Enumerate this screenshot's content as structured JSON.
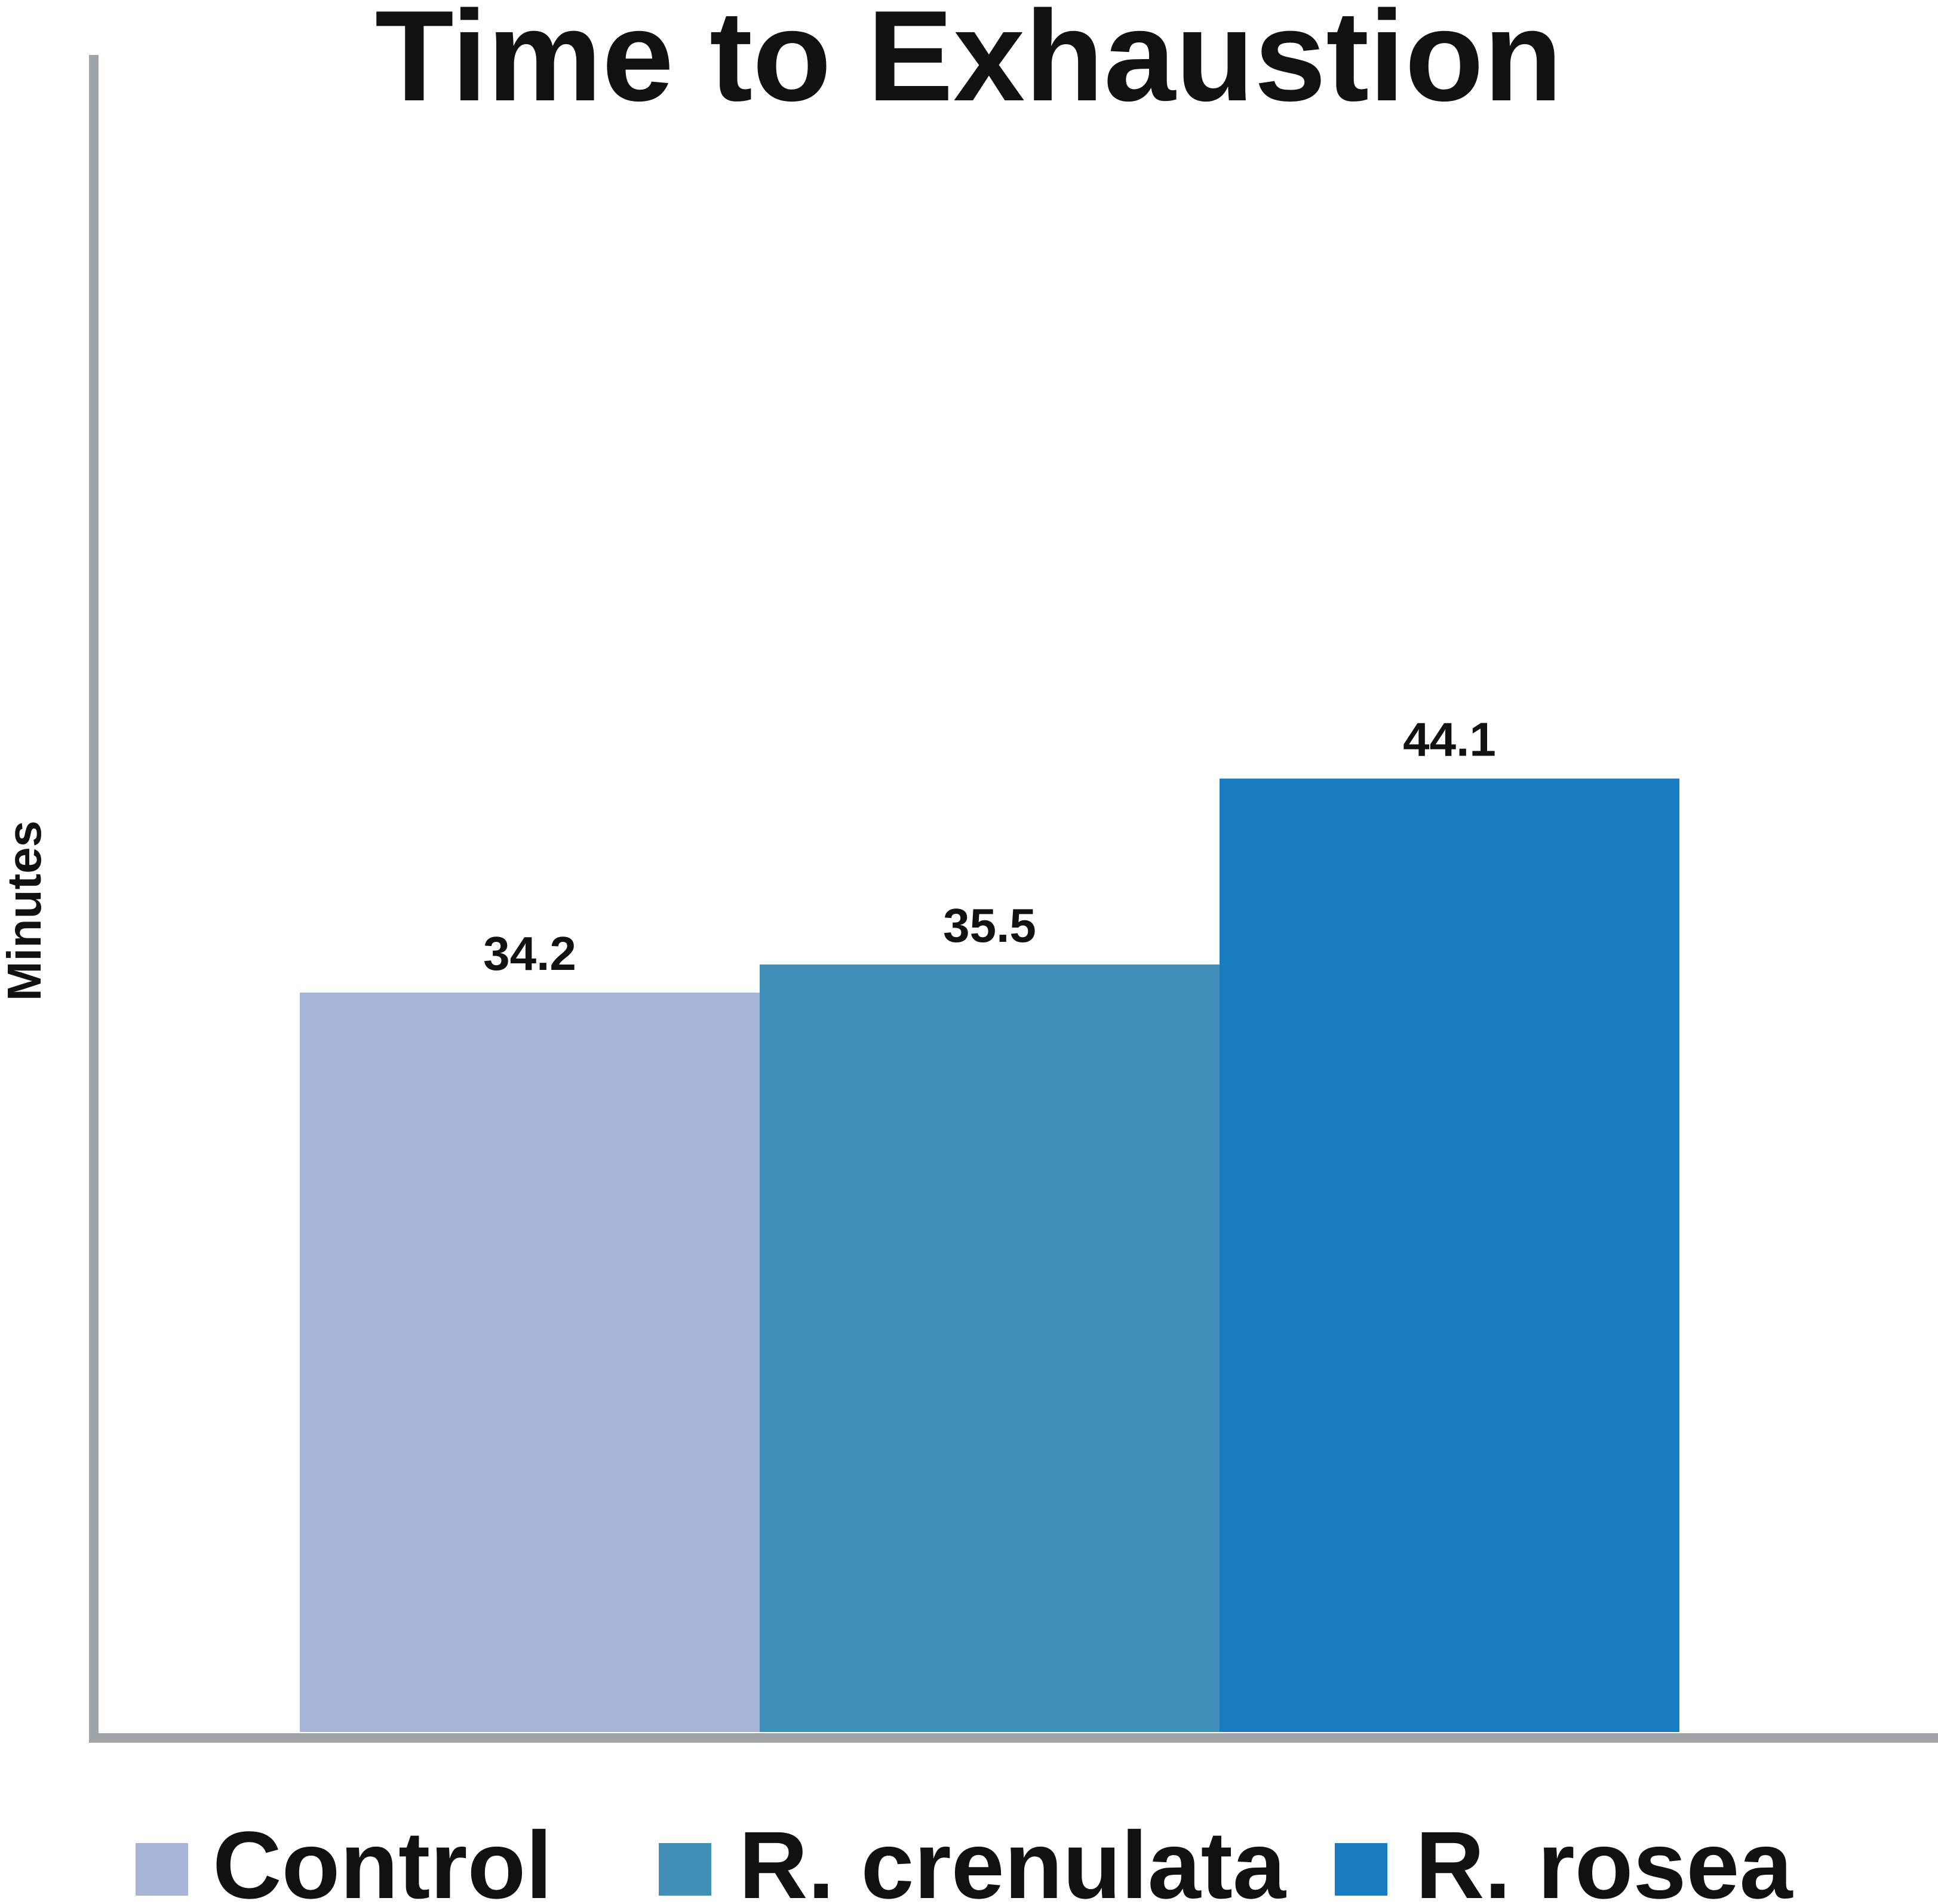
{
  "chart_data": {
    "type": "bar",
    "title": "Time to Exhaustion",
    "xlabel": "",
    "ylabel": "Minutes",
    "categories": [
      "Control",
      "R. crenulata",
      "R. rosea"
    ],
    "values": [
      34.2,
      35.5,
      44.1
    ],
    "value_labels": [
      "34.2",
      "35.5",
      "44.1"
    ],
    "colors": [
      "#A6B4D8",
      "#3F8FB8",
      "#187DC0"
    ],
    "ylim": [
      0,
      60
    ],
    "grid": false,
    "legend": {
      "placement": "bottom",
      "entries": [
        "Control",
        "R. crenulata",
        "R. rosea"
      ]
    },
    "axis_color": "#A0A4A8"
  }
}
